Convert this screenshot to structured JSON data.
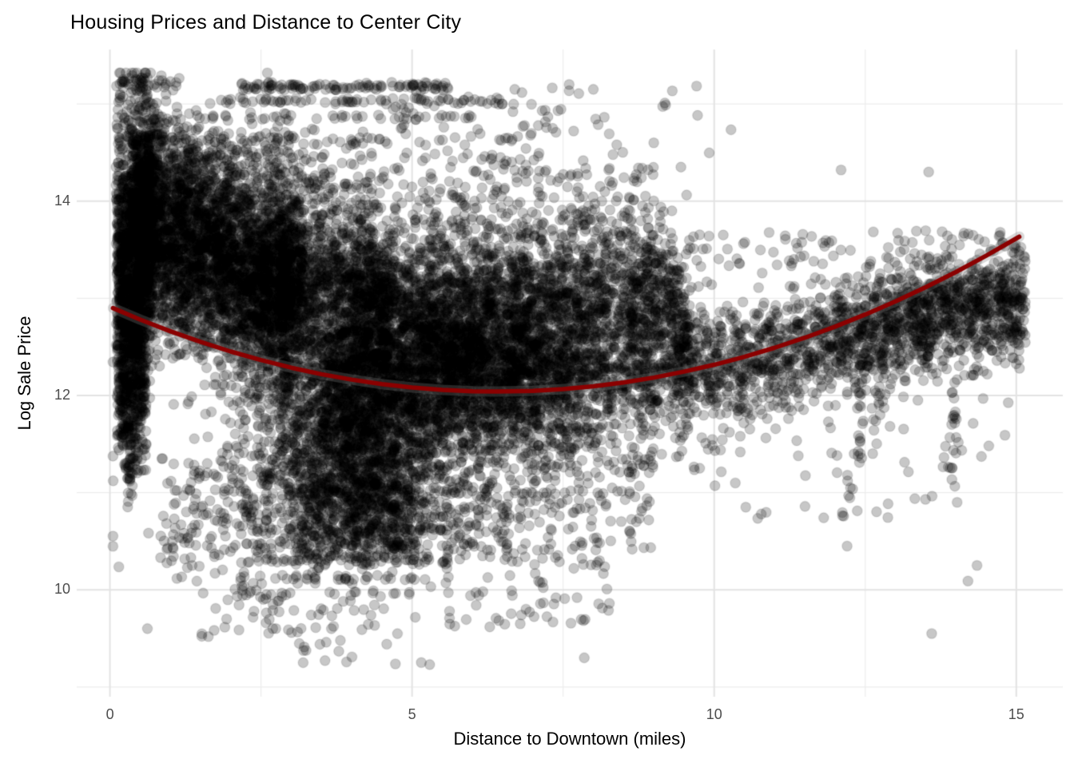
{
  "chart_data": {
    "type": "scatter",
    "title": "Housing Prices and Distance to Center City",
    "xlabel": "Distance to Downtown (miles)",
    "ylabel": "Log Sale Price",
    "xlim": [
      -0.55,
      15.77
    ],
    "ylim": [
      8.9,
      15.56
    ],
    "x_ticks": [
      0,
      5,
      10,
      15
    ],
    "y_ticks": [
      10,
      12,
      14
    ],
    "x_minor": [
      2.5,
      7.5,
      12.5
    ],
    "y_minor": [
      9,
      11,
      13,
      15
    ],
    "grid": "major+minor, no axis lines, white background",
    "legend": "none",
    "colors": {
      "background": "#FFFFFF",
      "grid_major": "#E3E3E3",
      "grid_minor": "#EDEDED",
      "point_fill": "rgba(0,0,0,0.22)",
      "point_stroke": "rgba(0,0,0,0.10)",
      "trend": "#8B0000",
      "ribbon": "rgba(125,125,125,0.30)",
      "tick_label": "#4D4D4D",
      "text": "#000000"
    },
    "point_radius_px": 6.3,
    "trend": {
      "name": "smooth fit (quadratic), dark red, min ~12.04 near x=6.4",
      "points": [
        [
          0.05,
          12.899
        ],
        [
          0.5,
          12.781
        ],
        [
          1,
          12.661
        ],
        [
          1.5,
          12.551
        ],
        [
          2,
          12.452
        ],
        [
          2.5,
          12.364
        ],
        [
          3,
          12.286
        ],
        [
          3.5,
          12.219
        ],
        [
          4,
          12.163
        ],
        [
          4.5,
          12.117
        ],
        [
          5,
          12.082
        ],
        [
          5.5,
          12.057
        ],
        [
          6,
          12.043
        ],
        [
          6.4,
          12.04
        ],
        [
          7,
          12.048
        ],
        [
          7.5,
          12.066
        ],
        [
          8,
          12.095
        ],
        [
          8.5,
          12.134
        ],
        [
          9,
          12.184
        ],
        [
          9.5,
          12.245
        ],
        [
          10,
          12.316
        ],
        [
          10.5,
          12.398
        ],
        [
          11,
          12.491
        ],
        [
          11.5,
          12.594
        ],
        [
          12,
          12.708
        ],
        [
          12.5,
          12.833
        ],
        [
          13,
          12.968
        ],
        [
          13.5,
          13.114
        ],
        [
          14,
          13.27
        ],
        [
          14.5,
          13.438
        ],
        [
          15.05,
          13.634
        ]
      ]
    },
    "point_cloud": {
      "description": "approx 19000 semi-transparent black points; generative cluster spec estimated from the figure (data coordinates: miles vs log sale price)",
      "seed": 7,
      "clusters": [
        {
          "type": "band",
          "n": 550,
          "x0": 0.1,
          "x1": 0.75,
          "cy": 13.9,
          "sy": 0.55
        },
        {
          "type": "band",
          "n": 700,
          "x0": 0.12,
          "x1": 0.7,
          "cy": 13.3,
          "sy": 0.6
        },
        {
          "type": "band",
          "n": 450,
          "x0": 0.12,
          "x1": 0.6,
          "cy": 12.4,
          "sy": 0.45
        },
        {
          "type": "uniform",
          "n": 110,
          "x0": 0.15,
          "x1": 0.6,
          "y0": 11.2,
          "y1": 12.2
        },
        {
          "type": "vstreak",
          "n": 45,
          "x": 0.33,
          "y0": 10.85,
          "y1": 12.0,
          "jx": 0.03
        },
        {
          "type": "uniform",
          "n": 60,
          "x0": 0.12,
          "x1": 1.1,
          "y0": 14.6,
          "y1": 15.28
        },
        {
          "type": "slope",
          "n": 2600,
          "x0": 0.35,
          "x1": 3.2,
          "a": 14.15,
          "b": -0.28,
          "sy": 0.5
        },
        {
          "type": "slope",
          "n": 1300,
          "x0": 0.5,
          "x1": 3.0,
          "a": 13.5,
          "b": -0.2,
          "sy": 0.45
        },
        {
          "type": "slope",
          "n": 900,
          "x0": 2.8,
          "x1": 4.6,
          "a": 13.6,
          "b": -0.15,
          "sy": 0.5
        },
        {
          "type": "gauss",
          "n": 2600,
          "cx": 5.6,
          "cy": 12.3,
          "sx": 1.5,
          "sy": 0.5
        },
        {
          "type": "gauss",
          "n": 1800,
          "cx": 6.8,
          "cy": 12.35,
          "sx": 1.3,
          "sy": 0.45
        },
        {
          "type": "gauss",
          "n": 1500,
          "cx": 4.2,
          "cy": 11.9,
          "sx": 0.9,
          "sy": 0.6
        },
        {
          "type": "gauss",
          "n": 700,
          "cx": 4.0,
          "cy": 11.2,
          "sx": 0.65,
          "sy": 0.45
        },
        {
          "type": "uniform",
          "n": 260,
          "x0": 3.1,
          "x1": 5.1,
          "y0": 10.3,
          "y1": 11.1
        },
        {
          "type": "band",
          "n": 900,
          "x0": 4.0,
          "x1": 9.4,
          "cy": 13.05,
          "sy": 0.28
        },
        {
          "type": "band",
          "n": 500,
          "x0": 2.8,
          "x1": 9.0,
          "cy": 13.35,
          "sy": 0.3
        },
        {
          "type": "uniform",
          "n": 280,
          "x0": 3.2,
          "x1": 9.2,
          "y0": 13.6,
          "y1": 14.35
        },
        {
          "type": "uniform",
          "n": 110,
          "x0": 1.2,
          "x1": 3.6,
          "y0": 14.1,
          "y1": 14.75
        },
        {
          "type": "uniform",
          "n": 60,
          "x0": 4.0,
          "x1": 8.2,
          "y0": 14.35,
          "y1": 15.0
        },
        {
          "type": "uniform",
          "n": 25,
          "x0": 6.2,
          "x1": 10.3,
          "y0": 14.2,
          "y1": 15.2
        },
        {
          "type": "hstreak",
          "n": 110,
          "y": 15.18,
          "x0": 2.15,
          "x1": 5.6,
          "jy": 0.02
        },
        {
          "type": "hstreak",
          "n": 22,
          "y": 15.22,
          "x0": 0.15,
          "x1": 0.6,
          "jy": 0.03
        },
        {
          "type": "hstreak",
          "n": 80,
          "y": 15.03,
          "x0": 1.55,
          "x1": 6.6,
          "jy": 0.02
        },
        {
          "type": "hstreak",
          "n": 40,
          "y": 14.86,
          "x0": 1.4,
          "x1": 6.2,
          "jy": 0.02
        },
        {
          "type": "hstreak",
          "n": 35,
          "y": 14.62,
          "x0": 0.9,
          "x1": 6.8,
          "jy": 0.03
        },
        {
          "type": "hstreak",
          "n": 30,
          "y": 14.45,
          "x0": 1.2,
          "x1": 7.2,
          "jy": 0.03
        },
        {
          "type": "gauss",
          "n": 500,
          "cx": 4.1,
          "cy": 10.9,
          "sx": 1.5,
          "sy": 0.35
        },
        {
          "type": "uniform",
          "n": 200,
          "x0": 5.3,
          "x1": 9.0,
          "y0": 10.4,
          "y1": 11.4
        },
        {
          "type": "uniform",
          "n": 120,
          "x0": 0.8,
          "x1": 2.6,
          "y0": 10.1,
          "y1": 11.4
        },
        {
          "type": "hstreak",
          "n": 45,
          "y": 10.62,
          "x0": 2.4,
          "x1": 5.9,
          "jy": 0.02
        },
        {
          "type": "hstreak",
          "n": 40,
          "y": 10.47,
          "x0": 2.2,
          "x1": 6.1,
          "jy": 0.02
        },
        {
          "type": "hstreak",
          "n": 34,
          "y": 10.3,
          "x0": 2.5,
          "x1": 5.6,
          "jy": 0.02
        },
        {
          "type": "hstreak",
          "n": 28,
          "y": 10.12,
          "x0": 2.7,
          "x1": 5.3,
          "jy": 0.02
        },
        {
          "type": "hstreak",
          "n": 22,
          "y": 9.95,
          "x0": 2.1,
          "x1": 5.5,
          "jy": 0.02
        },
        {
          "type": "hstreak",
          "n": 16,
          "y": 9.78,
          "x0": 2.5,
          "x1": 5.2,
          "jy": 0.03
        },
        {
          "type": "hstreak",
          "n": 12,
          "y": 9.6,
          "x0": 2.6,
          "x1": 5.4,
          "jy": 0.03
        },
        {
          "type": "hstreak",
          "n": 9,
          "y": 9.42,
          "x0": 3.0,
          "x1": 5.2,
          "jy": 0.03
        },
        {
          "type": "hstreak",
          "n": 7,
          "y": 9.25,
          "x0": 3.0,
          "x1": 5.6,
          "jy": 0.03
        },
        {
          "type": "uniform",
          "n": 70,
          "x0": 5.5,
          "x1": 8.3,
          "y0": 9.6,
          "y1": 10.4
        },
        {
          "type": "uniform",
          "n": 30,
          "x0": 1.4,
          "x1": 2.8,
          "y0": 9.5,
          "y1": 10.1
        },
        {
          "type": "band",
          "n": 380,
          "x0": 8.6,
          "x1": 9.6,
          "cy": 12.6,
          "sy": 0.45
        },
        {
          "type": "slope",
          "n": 1500,
          "x0": 9.4,
          "x1": 15.15,
          "a": 11.1,
          "b": 0.12,
          "sy": 0.3
        },
        {
          "type": "slope",
          "n": 420,
          "x0": 12.0,
          "x1": 15.15,
          "a": 11.3,
          "b": 0.12,
          "sy": 0.22
        },
        {
          "type": "uniform",
          "n": 90,
          "x0": 9.5,
          "x1": 15.1,
          "y0": 13.3,
          "y1": 13.7
        },
        {
          "type": "vstreak",
          "n": 18,
          "x": 12.4,
          "y0": 11.35,
          "y1": 12.15,
          "jx": 0.04
        },
        {
          "type": "vstreak",
          "n": 22,
          "x": 13.95,
          "y0": 10.9,
          "y1": 12.2,
          "jx": 0.04
        },
        {
          "type": "vstreak",
          "n": 12,
          "x": 10.45,
          "y0": 11.4,
          "y1": 12.2,
          "jx": 0.04
        },
        {
          "type": "vstreak",
          "n": 10,
          "x": 12.7,
          "y0": 11.5,
          "y1": 12.1,
          "jx": 0.04
        },
        {
          "type": "uniform",
          "n": 50,
          "x0": 9.5,
          "x1": 13.2,
          "y0": 10.7,
          "y1": 11.9
        },
        {
          "type": "uniform",
          "n": 16,
          "x0": 13.2,
          "x1": 14.9,
          "y0": 10.9,
          "y1": 12.0
        },
        {
          "type": "points",
          "pts": [
            [
              14.35,
              10.25
            ],
            [
              14.2,
              10.09
            ],
            [
              13.6,
              9.55
            ],
            [
              10.78,
              10.78
            ],
            [
              12.2,
              10.45
            ],
            [
              13.55,
              14.3
            ],
            [
              12.1,
              14.32
            ],
            [
              9.45,
              14.35
            ],
            [
              8.0,
              15.15
            ],
            [
              7.6,
              15.2
            ],
            [
              0.62,
              9.6
            ],
            [
              7.85,
              9.3
            ],
            [
              6.7,
              15.15
            ],
            [
              5.1,
              15.2
            ],
            [
              9.0,
              14.6
            ],
            [
              9.3,
              13.9
            ],
            [
              14.75,
              13.55
            ],
            [
              15.05,
              13.45
            ]
          ]
        }
      ]
    }
  }
}
